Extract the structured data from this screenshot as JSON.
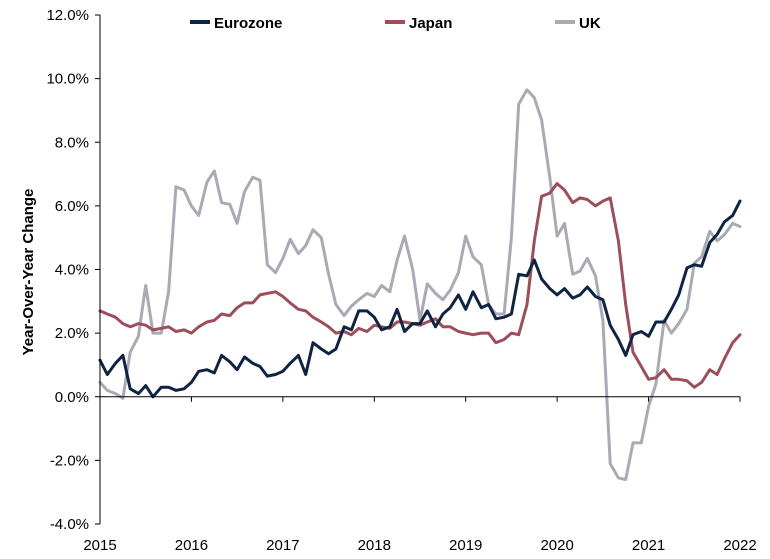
{
  "chart_data": {
    "type": "line",
    "title": "",
    "xlabel": "",
    "ylabel": "Year-Over-Year Change",
    "xlim": [
      2015,
      2022
    ],
    "ylim": [
      -4,
      12
    ],
    "grid": false,
    "legend_position": "top",
    "x_ticks": [
      2015,
      2016,
      2017,
      2018,
      2019,
      2020,
      2021,
      2022
    ],
    "x_tick_labels": [
      "2015",
      "2016",
      "2017",
      "2018",
      "2019",
      "2020",
      "2021",
      "2022"
    ],
    "y_ticks": [
      -4,
      -2,
      0,
      2,
      4,
      6,
      8,
      10,
      12
    ],
    "y_tick_labels": [
      "-4.0%",
      "-2.0%",
      "0.0%",
      "2.0%",
      "4.0%",
      "6.0%",
      "8.0%",
      "10.0%",
      "12.0%"
    ],
    "series": [
      {
        "name": "Eurozone",
        "color": "#0f2342",
        "points": [
          [
            2015.0,
            1.15
          ],
          [
            2015.08,
            0.7
          ],
          [
            2015.17,
            1.05
          ],
          [
            2015.25,
            1.3
          ],
          [
            2015.33,
            0.25
          ],
          [
            2015.42,
            0.1
          ],
          [
            2015.5,
            0.35
          ],
          [
            2015.58,
            0.0
          ],
          [
            2015.67,
            0.3
          ],
          [
            2015.75,
            0.3
          ],
          [
            2015.83,
            0.2
          ],
          [
            2015.92,
            0.25
          ],
          [
            2016.0,
            0.45
          ],
          [
            2016.08,
            0.8
          ],
          [
            2016.17,
            0.85
          ],
          [
            2016.25,
            0.75
          ],
          [
            2016.33,
            1.3
          ],
          [
            2016.42,
            1.1
          ],
          [
            2016.5,
            0.85
          ],
          [
            2016.58,
            1.25
          ],
          [
            2016.67,
            1.05
          ],
          [
            2016.75,
            0.95
          ],
          [
            2016.83,
            0.65
          ],
          [
            2016.92,
            0.7
          ],
          [
            2017.0,
            0.8
          ],
          [
            2017.08,
            1.05
          ],
          [
            2017.17,
            1.3
          ],
          [
            2017.25,
            0.7
          ],
          [
            2017.33,
            1.7
          ],
          [
            2017.42,
            1.5
          ],
          [
            2017.5,
            1.35
          ],
          [
            2017.58,
            1.5
          ],
          [
            2017.67,
            2.2
          ],
          [
            2017.75,
            2.1
          ],
          [
            2017.83,
            2.7
          ],
          [
            2017.92,
            2.7
          ],
          [
            2018.0,
            2.5
          ],
          [
            2018.08,
            2.1
          ],
          [
            2018.17,
            2.2
          ],
          [
            2018.25,
            2.75
          ],
          [
            2018.33,
            2.05
          ],
          [
            2018.42,
            2.3
          ],
          [
            2018.5,
            2.3
          ],
          [
            2018.58,
            2.7
          ],
          [
            2018.67,
            2.2
          ],
          [
            2018.75,
            2.6
          ],
          [
            2018.83,
            2.8
          ],
          [
            2018.92,
            3.2
          ],
          [
            2019.0,
            2.75
          ],
          [
            2019.08,
            3.3
          ],
          [
            2019.17,
            2.8
          ],
          [
            2019.25,
            2.9
          ],
          [
            2019.33,
            2.45
          ],
          [
            2019.42,
            2.5
          ],
          [
            2019.5,
            2.6
          ],
          [
            2019.58,
            3.85
          ],
          [
            2019.67,
            3.8
          ],
          [
            2019.75,
            4.3
          ],
          [
            2019.83,
            3.7
          ],
          [
            2019.92,
            3.4
          ],
          [
            2020.0,
            3.2
          ],
          [
            2020.08,
            3.4
          ],
          [
            2020.17,
            3.1
          ],
          [
            2020.25,
            3.2
          ],
          [
            2020.33,
            3.45
          ],
          [
            2020.42,
            3.15
          ],
          [
            2020.5,
            3.05
          ],
          [
            2020.58,
            2.25
          ],
          [
            2020.67,
            1.8
          ],
          [
            2020.75,
            1.3
          ],
          [
            2020.83,
            1.95
          ],
          [
            2020.92,
            2.05
          ],
          [
            2021.0,
            1.9
          ],
          [
            2021.08,
            2.35
          ],
          [
            2021.17,
            2.35
          ],
          [
            2021.25,
            2.75
          ],
          [
            2021.33,
            3.2
          ],
          [
            2021.42,
            4.05
          ],
          [
            2021.5,
            4.15
          ],
          [
            2021.58,
            4.1
          ],
          [
            2021.67,
            4.85
          ],
          [
            2021.75,
            5.1
          ],
          [
            2021.83,
            5.5
          ],
          [
            2021.92,
            5.7
          ],
          [
            2022.0,
            6.15
          ]
        ]
      },
      {
        "name": "Japan",
        "color": "#9b4f5b",
        "points": [
          [
            2015.0,
            2.7
          ],
          [
            2015.08,
            2.6
          ],
          [
            2015.17,
            2.5
          ],
          [
            2015.25,
            2.3
          ],
          [
            2015.33,
            2.2
          ],
          [
            2015.42,
            2.3
          ],
          [
            2015.5,
            2.25
          ],
          [
            2015.58,
            2.1
          ],
          [
            2015.67,
            2.15
          ],
          [
            2015.75,
            2.2
          ],
          [
            2015.83,
            2.05
          ],
          [
            2015.92,
            2.1
          ],
          [
            2016.0,
            2.0
          ],
          [
            2016.08,
            2.2
          ],
          [
            2016.17,
            2.35
          ],
          [
            2016.25,
            2.4
          ],
          [
            2016.33,
            2.6
          ],
          [
            2016.42,
            2.55
          ],
          [
            2016.5,
            2.8
          ],
          [
            2016.58,
            2.95
          ],
          [
            2016.67,
            2.95
          ],
          [
            2016.75,
            3.2
          ],
          [
            2016.83,
            3.25
          ],
          [
            2016.92,
            3.3
          ],
          [
            2017.0,
            3.15
          ],
          [
            2017.08,
            2.95
          ],
          [
            2017.17,
            2.75
          ],
          [
            2017.25,
            2.7
          ],
          [
            2017.33,
            2.5
          ],
          [
            2017.42,
            2.35
          ],
          [
            2017.5,
            2.2
          ],
          [
            2017.58,
            2.0
          ],
          [
            2017.67,
            2.05
          ],
          [
            2017.75,
            1.95
          ],
          [
            2017.83,
            2.15
          ],
          [
            2017.92,
            2.05
          ],
          [
            2018.0,
            2.25
          ],
          [
            2018.08,
            2.2
          ],
          [
            2018.17,
            2.15
          ],
          [
            2018.25,
            2.35
          ],
          [
            2018.33,
            2.35
          ],
          [
            2018.42,
            2.3
          ],
          [
            2018.5,
            2.25
          ],
          [
            2018.58,
            2.35
          ],
          [
            2018.67,
            2.45
          ],
          [
            2018.75,
            2.2
          ],
          [
            2018.83,
            2.2
          ],
          [
            2018.92,
            2.05
          ],
          [
            2019.0,
            2.0
          ],
          [
            2019.08,
            1.95
          ],
          [
            2019.17,
            2.0
          ],
          [
            2019.25,
            2.0
          ],
          [
            2019.33,
            1.7
          ],
          [
            2019.42,
            1.8
          ],
          [
            2019.5,
            2.0
          ],
          [
            2019.58,
            1.95
          ],
          [
            2019.67,
            2.9
          ],
          [
            2019.75,
            4.9
          ],
          [
            2019.83,
            6.3
          ],
          [
            2019.92,
            6.4
          ],
          [
            2020.0,
            6.7
          ],
          [
            2020.08,
            6.5
          ],
          [
            2020.17,
            6.1
          ],
          [
            2020.25,
            6.25
          ],
          [
            2020.33,
            6.2
          ],
          [
            2020.42,
            6.0
          ],
          [
            2020.5,
            6.15
          ],
          [
            2020.58,
            6.25
          ],
          [
            2020.67,
            4.9
          ],
          [
            2020.75,
            2.9
          ],
          [
            2020.83,
            1.4
          ],
          [
            2020.92,
            0.95
          ],
          [
            2021.0,
            0.55
          ],
          [
            2021.08,
            0.6
          ],
          [
            2021.17,
            0.85
          ],
          [
            2021.25,
            0.55
          ],
          [
            2021.33,
            0.55
          ],
          [
            2021.42,
            0.5
          ],
          [
            2021.5,
            0.3
          ],
          [
            2021.58,
            0.45
          ],
          [
            2021.67,
            0.85
          ],
          [
            2021.75,
            0.7
          ],
          [
            2021.83,
            1.2
          ],
          [
            2021.92,
            1.7
          ],
          [
            2022.0,
            1.95
          ]
        ]
      },
      {
        "name": "UK",
        "color": "#a9aab4",
        "points": [
          [
            2015.0,
            0.45
          ],
          [
            2015.08,
            0.2
          ],
          [
            2015.17,
            0.1
          ],
          [
            2015.25,
            -0.05
          ],
          [
            2015.33,
            1.4
          ],
          [
            2015.42,
            1.9
          ],
          [
            2015.5,
            3.5
          ],
          [
            2015.58,
            2.0
          ],
          [
            2015.67,
            2.0
          ],
          [
            2015.75,
            3.3
          ],
          [
            2015.83,
            6.6
          ],
          [
            2015.92,
            6.5
          ],
          [
            2016.0,
            6.0
          ],
          [
            2016.08,
            5.7
          ],
          [
            2016.17,
            6.75
          ],
          [
            2016.25,
            7.1
          ],
          [
            2016.33,
            6.1
          ],
          [
            2016.42,
            6.05
          ],
          [
            2016.5,
            5.45
          ],
          [
            2016.58,
            6.45
          ],
          [
            2016.67,
            6.9
          ],
          [
            2016.75,
            6.8
          ],
          [
            2016.83,
            4.15
          ],
          [
            2016.92,
            3.9
          ],
          [
            2017.0,
            4.35
          ],
          [
            2017.08,
            4.95
          ],
          [
            2017.17,
            4.5
          ],
          [
            2017.25,
            4.75
          ],
          [
            2017.33,
            5.25
          ],
          [
            2017.42,
            5.0
          ],
          [
            2017.5,
            3.85
          ],
          [
            2017.58,
            2.9
          ],
          [
            2017.67,
            2.55
          ],
          [
            2017.75,
            2.85
          ],
          [
            2017.83,
            3.05
          ],
          [
            2017.92,
            3.25
          ],
          [
            2018.0,
            3.15
          ],
          [
            2018.08,
            3.5
          ],
          [
            2018.17,
            3.3
          ],
          [
            2018.25,
            4.3
          ],
          [
            2018.33,
            5.05
          ],
          [
            2018.42,
            4.0
          ],
          [
            2018.5,
            2.4
          ],
          [
            2018.58,
            3.55
          ],
          [
            2018.67,
            3.25
          ],
          [
            2018.75,
            3.05
          ],
          [
            2018.83,
            3.35
          ],
          [
            2018.92,
            3.9
          ],
          [
            2019.0,
            5.05
          ],
          [
            2019.08,
            4.4
          ],
          [
            2019.17,
            4.15
          ],
          [
            2019.25,
            2.9
          ],
          [
            2019.33,
            2.6
          ],
          [
            2019.42,
            2.6
          ],
          [
            2019.5,
            5.0
          ],
          [
            2019.58,
            9.2
          ],
          [
            2019.67,
            9.65
          ],
          [
            2019.75,
            9.4
          ],
          [
            2019.83,
            8.7
          ],
          [
            2019.92,
            6.9
          ],
          [
            2020.0,
            5.05
          ],
          [
            2020.08,
            5.45
          ],
          [
            2020.17,
            3.85
          ],
          [
            2020.25,
            3.95
          ],
          [
            2020.33,
            4.35
          ],
          [
            2020.42,
            3.8
          ],
          [
            2020.5,
            2.4
          ],
          [
            2020.58,
            -2.1
          ],
          [
            2020.67,
            -2.55
          ],
          [
            2020.75,
            -2.6
          ],
          [
            2020.83,
            -1.45
          ],
          [
            2020.92,
            -1.45
          ],
          [
            2021.0,
            -0.3
          ],
          [
            2021.08,
            0.4
          ],
          [
            2021.17,
            2.4
          ],
          [
            2021.25,
            2.0
          ],
          [
            2021.33,
            2.3
          ],
          [
            2021.42,
            2.75
          ],
          [
            2021.5,
            4.2
          ],
          [
            2021.58,
            4.4
          ],
          [
            2021.67,
            5.2
          ],
          [
            2021.75,
            4.9
          ],
          [
            2021.83,
            5.1
          ],
          [
            2021.92,
            5.45
          ],
          [
            2022.0,
            5.35
          ]
        ]
      }
    ]
  }
}
